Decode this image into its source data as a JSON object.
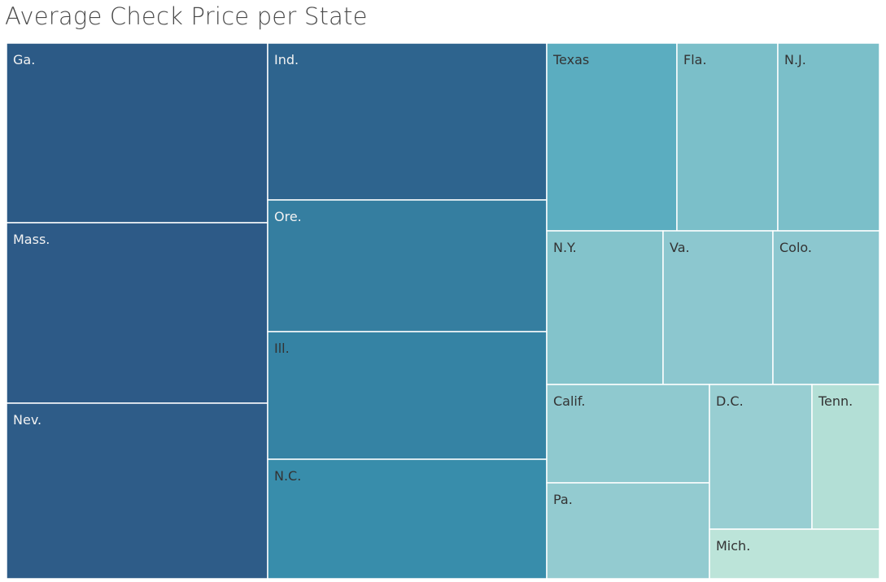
{
  "chart_data": {
    "type": "treemap",
    "title": "Average Check Price per State",
    "items": [
      {
        "label": "Ga.",
        "color": "#2c5a86"
      },
      {
        "label": "Mass.",
        "color": "#2d5a87"
      },
      {
        "label": "Nev.",
        "color": "#2e5c88"
      },
      {
        "label": "Ind.",
        "color": "#2e648e"
      },
      {
        "label": "Ore.",
        "color": "#357ea0"
      },
      {
        "label": "Ill.",
        "color": "#3583a4"
      },
      {
        "label": "N.C.",
        "color": "#388dab"
      },
      {
        "label": "Texas",
        "color": "#5badc0"
      },
      {
        "label": "Fla.",
        "color": "#7bbfc9"
      },
      {
        "label": "N.J.",
        "color": "#7bbfc9"
      },
      {
        "label": "N.Y.",
        "color": "#83c3cb"
      },
      {
        "label": "Va.",
        "color": "#8cc7cf"
      },
      {
        "label": "Colo.",
        "color": "#8cc7cf"
      },
      {
        "label": "Calif.",
        "color": "#8fc9cf"
      },
      {
        "label": "Pa.",
        "color": "#93cbd0"
      },
      {
        "label": "D.C.",
        "color": "#98ced2"
      },
      {
        "label": "Tenn.",
        "color": "#b3dfd6"
      },
      {
        "label": "Mich.",
        "color": "#bce4d9"
      }
    ]
  }
}
